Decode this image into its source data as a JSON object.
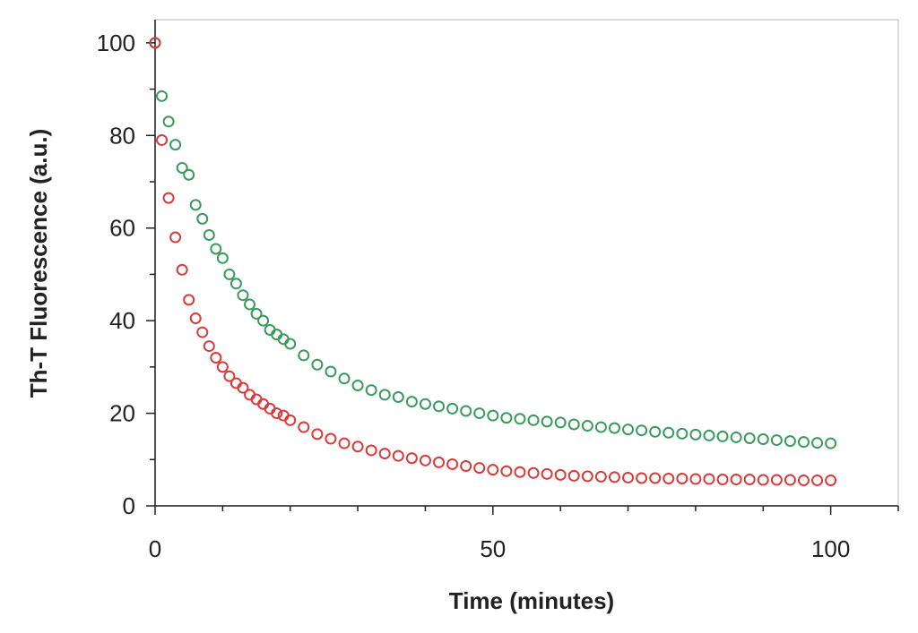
{
  "chart_data": {
    "type": "scatter",
    "title": "",
    "xlabel": "Time (minutes)",
    "ylabel": "Th-T Fluorescence (a.u.)",
    "xlim": [
      0,
      110
    ],
    "ylim": [
      0,
      105
    ],
    "x_ticks": [
      0,
      50,
      100
    ],
    "y_ticks": [
      0,
      20,
      40,
      60,
      80,
      100
    ],
    "grid": false,
    "legend": "none",
    "series": [
      {
        "color": "#3a9a5c",
        "marker": "open-circle",
        "x": [
          0,
          1,
          2,
          3,
          4,
          5,
          6,
          7,
          8,
          9,
          10,
          11,
          12,
          13,
          14,
          15,
          16,
          17,
          18,
          19,
          20,
          22,
          24,
          26,
          28,
          30,
          32,
          34,
          36,
          38,
          40,
          42,
          44,
          46,
          48,
          50,
          52,
          54,
          56,
          58,
          60,
          62,
          64,
          66,
          68,
          70,
          72,
          74,
          76,
          78,
          80,
          82,
          84,
          86,
          88,
          90,
          92,
          94,
          96,
          98,
          100
        ],
        "y": [
          100,
          88.5,
          83,
          78,
          73,
          71.5,
          65,
          62,
          58.5,
          55.5,
          53.5,
          50,
          48,
          45.5,
          43.5,
          41.5,
          40,
          38,
          37,
          36,
          35,
          32.5,
          30.5,
          29,
          27.5,
          26,
          25,
          24,
          23.5,
          22.5,
          22,
          21.5,
          21,
          20.5,
          20,
          19.5,
          19,
          18.8,
          18.5,
          18.2,
          18,
          17.6,
          17.3,
          17,
          16.8,
          16.5,
          16.3,
          16,
          15.8,
          15.6,
          15.4,
          15.2,
          15,
          14.8,
          14.6,
          14.4,
          14.2,
          14,
          13.8,
          13.6,
          13.5
        ]
      },
      {
        "color": "#d93a3a",
        "marker": "open-circle",
        "x": [
          0,
          1,
          2,
          3,
          4,
          5,
          6,
          7,
          8,
          9,
          10,
          11,
          12,
          13,
          14,
          15,
          16,
          17,
          18,
          19,
          20,
          22,
          24,
          26,
          28,
          30,
          32,
          34,
          36,
          38,
          40,
          42,
          44,
          46,
          48,
          50,
          52,
          54,
          56,
          58,
          60,
          62,
          64,
          66,
          68,
          70,
          72,
          74,
          76,
          78,
          80,
          82,
          84,
          86,
          88,
          90,
          92,
          94,
          96,
          98,
          100
        ],
        "y": [
          100,
          79,
          66.5,
          58,
          51,
          44.5,
          40.5,
          37.5,
          34.5,
          32,
          30,
          28,
          26.5,
          25.5,
          24,
          23,
          22,
          21,
          20,
          19.5,
          18.5,
          17,
          15.5,
          14.5,
          13.5,
          12.8,
          12,
          11.3,
          10.8,
          10.3,
          9.8,
          9.4,
          9,
          8.6,
          8.2,
          7.8,
          7.5,
          7.3,
          7.1,
          6.9,
          6.7,
          6.5,
          6.4,
          6.3,
          6.2,
          6.1,
          6,
          6,
          5.9,
          5.9,
          5.8,
          5.8,
          5.7,
          5.7,
          5.7,
          5.6,
          5.6,
          5.6,
          5.5,
          5.5,
          5.5
        ]
      }
    ]
  }
}
